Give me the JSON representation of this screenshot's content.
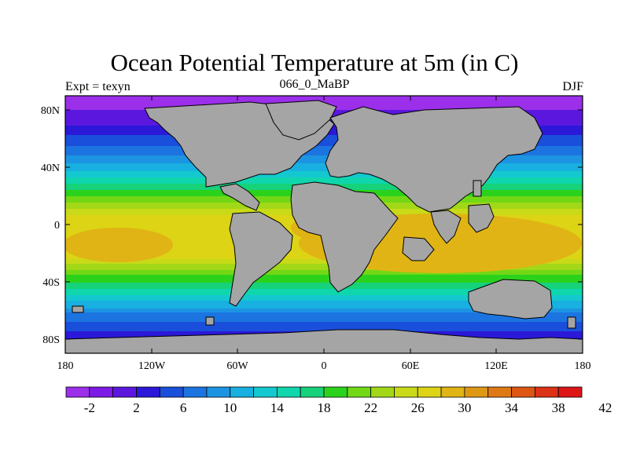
{
  "title": "Ocean Potential Temperature at 5m (in C)",
  "left_subtitle": "Expt = texyn",
  "center_subtitle": "066_0_MaBP",
  "right_subtitle": "DJF",
  "axes": {
    "lon_labels": [
      "180",
      "120W",
      "60W",
      "0",
      "60E",
      "120E",
      "180"
    ],
    "lat_labels": [
      "80N",
      "40N",
      "0",
      "40S",
      "80S"
    ]
  },
  "colorbar": {
    "labels": [
      "-2",
      "2",
      "6",
      "10",
      "14",
      "18",
      "22",
      "26",
      "30",
      "34",
      "38",
      "42"
    ],
    "colors": [
      "#9b2fea",
      "#7e1ae6",
      "#5b17de",
      "#2b18d8",
      "#1a4fdc",
      "#1c74e0",
      "#1c94e2",
      "#18b0e0",
      "#14c8cf",
      "#10d6ad",
      "#16d27a",
      "#2bd21c",
      "#72d816",
      "#a2d818",
      "#c8da18",
      "#dcd414",
      "#e0b414",
      "#de9814",
      "#de7a14",
      "#de5614",
      "#dc3216",
      "#dc1616"
    ]
  },
  "icons": [
    "colorbar-gradient",
    "land-mask",
    "temperature-field"
  ]
}
